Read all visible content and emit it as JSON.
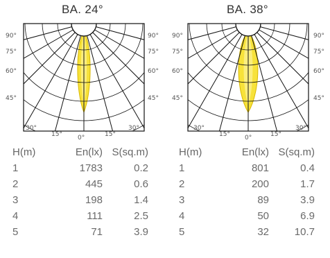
{
  "panels": [
    {
      "title": "BA. 24°",
      "beam_angle_deg": 24,
      "angle_labels": {
        "left": [
          "90°",
          "75°",
          "60°",
          "45°"
        ],
        "right": [
          "90°",
          "75°",
          "60°",
          "45°"
        ],
        "bottom": [
          "30°",
          "15°",
          "0°",
          "15°",
          "30°"
        ]
      },
      "table": {
        "headers": [
          "H(m)",
          "En(lx)",
          "S(sq.m)"
        ],
        "rows": [
          [
            "1",
            "1783",
            "0.2"
          ],
          [
            "2",
            "445",
            "0.6"
          ],
          [
            "3",
            "198",
            "1.4"
          ],
          [
            "4",
            "111",
            "2.5"
          ],
          [
            "5",
            "71",
            "3.9"
          ]
        ]
      }
    },
    {
      "title": "BA. 38°",
      "beam_angle_deg": 38,
      "angle_labels": {
        "left": [
          "90°",
          "75°",
          "60°",
          "45°"
        ],
        "right": [
          "90°",
          "75°",
          "60°",
          "45°"
        ],
        "bottom": [
          "30°",
          "15°",
          "0°",
          "15°",
          "30°"
        ]
      },
      "table": {
        "headers": [
          "H(m)",
          "En(lx)",
          "S(sq.m)"
        ],
        "rows": [
          [
            "1",
            "801",
            "0.4"
          ],
          [
            "2",
            "200",
            "1.7"
          ],
          [
            "3",
            "89",
            "3.9"
          ],
          [
            "4",
            "50",
            "6.9"
          ],
          [
            "5",
            "32",
            "10.7"
          ]
        ]
      }
    }
  ],
  "colors": {
    "beam_fill": "#f7e23a",
    "beam_inner": "#fbf08c",
    "beam_stroke": "#d9b800",
    "grid": "#111111"
  }
}
